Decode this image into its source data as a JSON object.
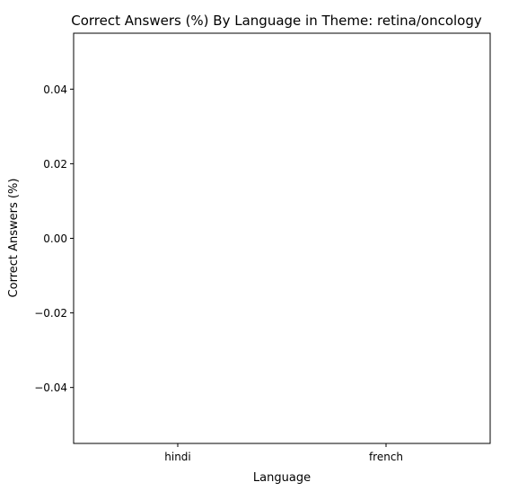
{
  "chart_data": {
    "type": "bar",
    "title": "Correct Answers (%) By Language in Theme: retina/oncology",
    "xlabel": "Language",
    "ylabel": "Correct Answers (%)",
    "categories": [
      "hindi",
      "french"
    ],
    "values": [
      0,
      0
    ],
    "ylim": [
      -0.055,
      0.055
    ],
    "yticks": [
      0.04,
      0.02,
      0.0,
      -0.02,
      -0.04
    ],
    "ytick_labels": [
      "0.04",
      "0.02",
      "0.00",
      "−0.02",
      "−0.04"
    ],
    "grid": false,
    "legend": "none",
    "colors": {
      "axes": "#000000",
      "background": "#ffffff"
    }
  }
}
